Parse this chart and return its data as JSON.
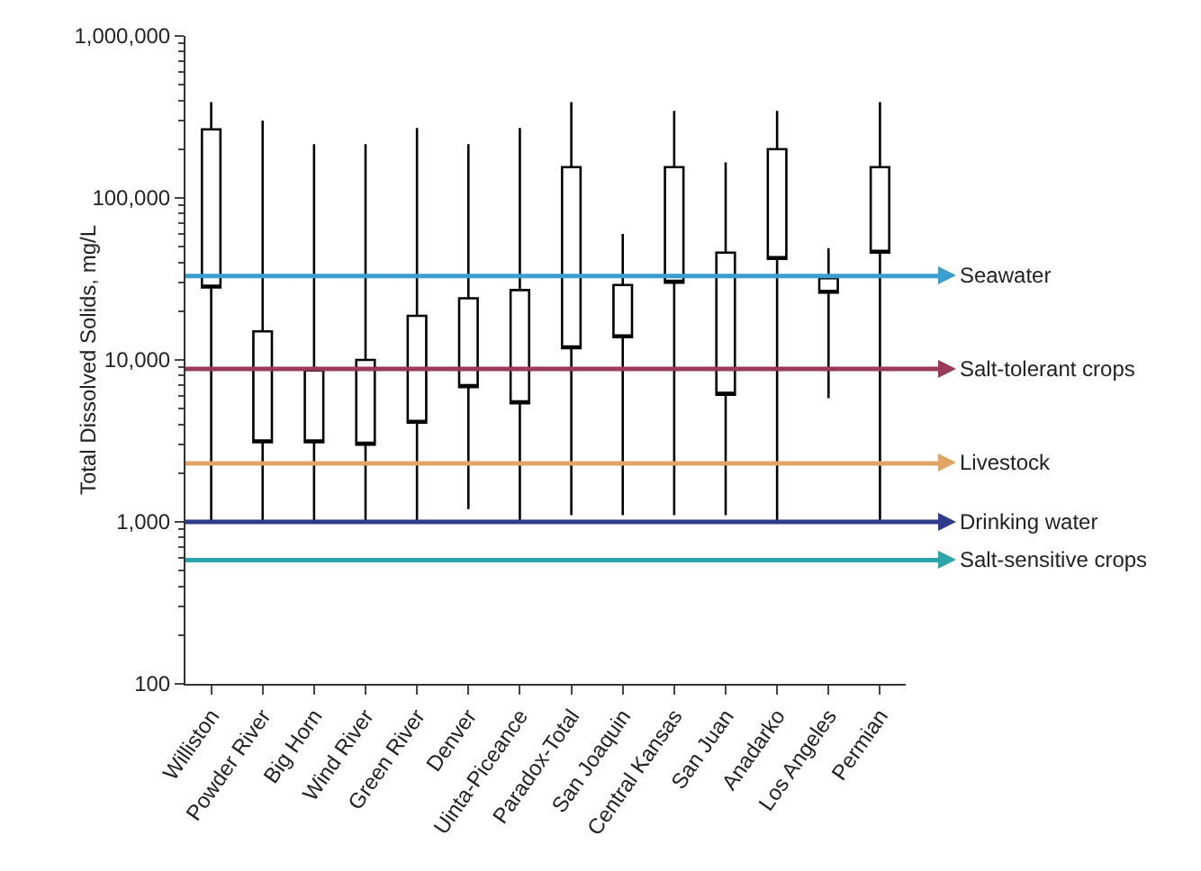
{
  "chart_data": {
    "type": "box",
    "ylabel": "Total Dissolved Solids, mg/L",
    "log": true,
    "grid": false,
    "categories": [
      "Williston",
      "Powder River",
      "Big Horn",
      "Wind River",
      "Green River",
      "Denver",
      "Uinta-Piceance",
      "Paradox-Total",
      "San Joaquin",
      "Central Kansas",
      "San Juan",
      "Anadarko",
      "Los Angeles",
      "Permian"
    ],
    "color": "#000000",
    "boxes": [
      {
        "low": 1000,
        "q1": 28000,
        "q3": 265000,
        "high": 390000
      },
      {
        "low": 1000,
        "q1": 3100,
        "q3": 15000,
        "high": 300000
      },
      {
        "low": 1000,
        "q1": 3100,
        "q3": 8600,
        "high": 215000
      },
      {
        "low": 1000,
        "q1": 3000,
        "q3": 10000,
        "high": 215000
      },
      {
        "low": 1000,
        "q1": 4100,
        "q3": 18700,
        "high": 270000
      },
      {
        "low": 1200,
        "q1": 6800,
        "q3": 24000,
        "high": 215000
      },
      {
        "low": 1000,
        "q1": 5400,
        "q3": 27000,
        "high": 270000
      },
      {
        "low": 1100,
        "q1": 11800,
        "q3": 155000,
        "high": 390000
      },
      {
        "low": 1100,
        "q1": 13800,
        "q3": 29000,
        "high": 60000
      },
      {
        "low": 1100,
        "q1": 30000,
        "q3": 155000,
        "high": 345000
      },
      {
        "low": 1100,
        "q1": 6100,
        "q3": 46000,
        "high": 166000
      },
      {
        "low": 1000,
        "q1": 42000,
        "q3": 200000,
        "high": 345000
      },
      {
        "low": 5800,
        "q1": 26000,
        "q3": 32000,
        "high": 49000
      },
      {
        "low": 1000,
        "q1": 46000,
        "q3": 155000,
        "high": 390000
      }
    ],
    "ylim": [
      100,
      1000000
    ],
    "yticks": [
      {
        "value": 100,
        "label": "100"
      },
      {
        "value": 1000,
        "label": "1,000"
      },
      {
        "value": 10000,
        "label": "10,000"
      },
      {
        "value": 100000,
        "label": "100,000"
      },
      {
        "value": 1000000,
        "label": "1,000,000"
      }
    ],
    "ref_lines": [
      {
        "axis": "y",
        "value": 33000,
        "label": "Seawater",
        "color": "#3a9fd0"
      },
      {
        "axis": "y",
        "value": 8800,
        "label": "Salt-tolerant crops",
        "color": "#9b3a58"
      },
      {
        "axis": "y",
        "value": 2300,
        "label": "Livestock",
        "color": "#e2a465"
      },
      {
        "axis": "y",
        "value": 1000,
        "label": "Drinking water",
        "color": "#2e3a8a"
      },
      {
        "axis": "y",
        "value": 580,
        "label": "Salt-sensitive crops",
        "color": "#2aa5a8"
      }
    ]
  }
}
